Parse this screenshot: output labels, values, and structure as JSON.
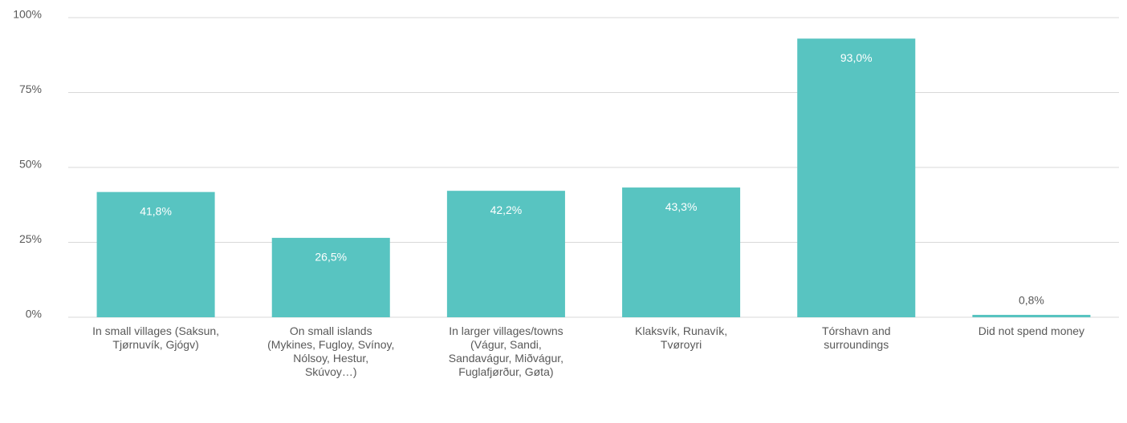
{
  "chart_data": {
    "type": "bar",
    "categories": [
      "In small villages (Saksun, Tjørnuvík, Gjógv)",
      "On small islands (Mykines, Fugloy, Svínoy, Nólsoy, Hestur, Skúvoy…)",
      "In larger villages/towns (Vágur, Sandi, Sandavágur, Miðvágur, Fuglafjørður, Gøta)",
      "Klaksvík, Runavík, Tvøroyri",
      "Tórshavn and surroundings",
      "Did not spend money"
    ],
    "values": [
      41.8,
      26.5,
      42.2,
      43.3,
      93.0,
      0.8
    ],
    "value_labels": [
      "41,8%",
      "26,5%",
      "42,2%",
      "43,3%",
      "93,0%",
      "0,8%"
    ],
    "color": "#58c4c1",
    "ylim": [
      0,
      100
    ],
    "yticks": [
      {
        "value": 0,
        "label": "0%"
      },
      {
        "value": 25,
        "label": "25%"
      },
      {
        "value": 50,
        "label": "50%"
      },
      {
        "value": 75,
        "label": "75%"
      },
      {
        "value": 100,
        "label": "100%"
      }
    ],
    "grid": true
  }
}
